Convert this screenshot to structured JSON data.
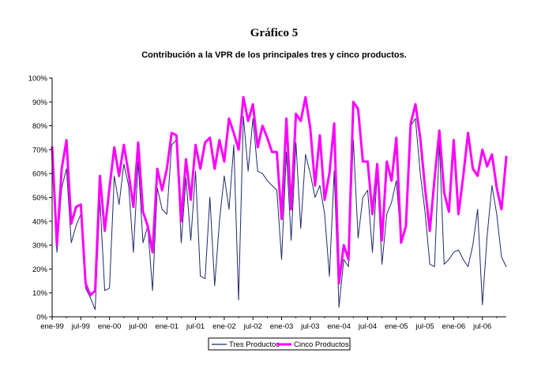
{
  "chart_data": {
    "type": "line",
    "title": "Gráfico 5",
    "subtitle": "Contribución a la VPR de los principales tres y cinco productos.",
    "xlabel": "",
    "ylabel": "",
    "ylim": [
      0,
      100
    ],
    "yticks": [
      "0%",
      "10%",
      "20%",
      "30%",
      "40%",
      "50%",
      "60%",
      "70%",
      "80%",
      "90%",
      "100%"
    ],
    "grid": false,
    "legend_position": "bottom",
    "x_tick_labels": [
      "ene-99",
      "jul-99",
      "ene-00",
      "jul-00",
      "ene-01",
      "jul-01",
      "ene-02",
      "jul-02",
      "ene-03",
      "jul-03",
      "ene-04",
      "jul-04",
      "ene-05",
      "jul-05",
      "ene-06",
      "jul-06"
    ],
    "x_tick_index": [
      0,
      6,
      12,
      18,
      24,
      30,
      36,
      42,
      48,
      54,
      60,
      66,
      72,
      78,
      84,
      90
    ],
    "series": [
      {
        "name": "Tres Productos",
        "color": "#1f2a6b",
        "values": [
          68,
          27,
          54,
          62,
          31,
          38,
          43,
          12,
          8,
          3,
          49,
          11,
          12,
          59,
          47,
          64,
          55,
          27,
          65,
          31,
          38,
          11,
          54,
          45,
          43,
          72,
          74,
          31,
          58,
          32,
          61,
          17,
          16,
          50,
          13,
          40,
          59,
          45,
          72,
          7,
          84,
          61,
          83,
          61,
          60,
          57,
          55,
          53,
          24,
          69,
          32,
          73,
          37,
          68,
          60,
          50,
          55,
          43,
          17,
          61,
          4,
          24,
          21,
          74,
          33,
          50,
          53,
          27,
          60,
          22,
          43,
          48,
          57,
          31,
          38,
          80,
          83,
          60,
          44,
          22,
          21,
          73,
          22,
          24,
          27,
          28,
          24,
          21,
          30,
          45,
          5,
          34,
          55,
          43,
          25,
          21
        ]
      },
      {
        "name": "Cinco Productos",
        "color": "#ff00ff",
        "values": [
          71,
          30,
          62,
          74,
          39,
          46,
          47,
          14,
          9,
          11,
          59,
          36,
          54,
          71,
          59,
          72,
          60,
          46,
          73,
          44,
          38,
          27,
          62,
          53,
          62,
          77,
          76,
          40,
          66,
          49,
          72,
          62,
          73,
          75,
          62,
          74,
          65,
          83,
          77,
          70,
          92,
          82,
          89,
          71,
          80,
          75,
          69,
          69,
          41,
          83,
          45,
          85,
          82,
          92,
          79,
          55,
          76,
          49,
          60,
          81,
          14,
          30,
          24,
          90,
          87,
          65,
          65,
          43,
          64,
          32,
          65,
          57,
          75,
          31,
          38,
          81,
          89,
          75,
          54,
          36,
          58,
          78,
          52,
          44,
          74,
          43,
          59,
          77,
          62,
          59,
          70,
          63,
          68,
          54,
          45,
          67
        ]
      }
    ]
  }
}
